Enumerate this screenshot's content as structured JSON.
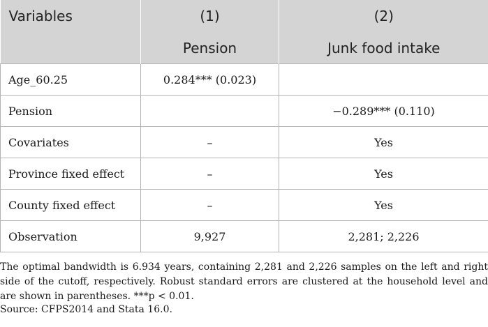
{
  "table": {
    "header_row1": [
      "Variables",
      "(1)",
      "(2)"
    ],
    "header_row2": [
      "",
      "Pension",
      "Junk food intake"
    ],
    "rows": [
      [
        "Age_60.25",
        "0.284*** (0.023)",
        ""
      ],
      [
        "Pension",
        "",
        "−0.289*** (0.110)"
      ],
      [
        "Covariates",
        "–",
        "Yes"
      ],
      [
        "Province fixed effect",
        "–",
        "Yes"
      ],
      [
        "County fixed effect",
        "–",
        "Yes"
      ],
      [
        "Observation",
        "9,927",
        "2,281; 2,226"
      ]
    ]
  },
  "notes": {
    "body": "The optimal bandwidth is 6.934 years, containing 2,281 and 2,226 samples on the left and right side of the cutoff, respectively. Robust standard errors are clustered at the household level and are shown in parentheses. ***p < 0.01.",
    "source": "Source: CFPS2014 and Stata 16.0."
  }
}
